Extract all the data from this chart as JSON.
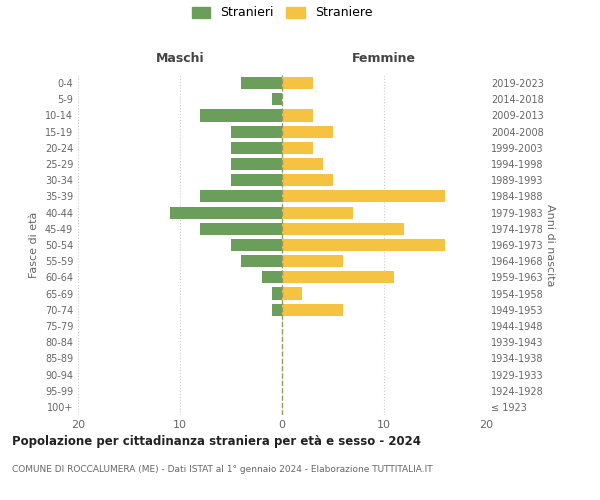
{
  "age_groups": [
    "100+",
    "95-99",
    "90-94",
    "85-89",
    "80-84",
    "75-79",
    "70-74",
    "65-69",
    "60-64",
    "55-59",
    "50-54",
    "45-49",
    "40-44",
    "35-39",
    "30-34",
    "25-29",
    "20-24",
    "15-19",
    "10-14",
    "5-9",
    "0-4"
  ],
  "birth_years": [
    "≤ 1923",
    "1924-1928",
    "1929-1933",
    "1934-1938",
    "1939-1943",
    "1944-1948",
    "1949-1953",
    "1954-1958",
    "1959-1963",
    "1964-1968",
    "1969-1973",
    "1974-1978",
    "1979-1983",
    "1984-1988",
    "1989-1993",
    "1994-1998",
    "1999-2003",
    "2004-2008",
    "2009-2013",
    "2014-2018",
    "2019-2023"
  ],
  "maschi": [
    0,
    0,
    0,
    0,
    0,
    0,
    1,
    1,
    2,
    4,
    5,
    8,
    11,
    8,
    5,
    5,
    5,
    5,
    8,
    1,
    4
  ],
  "femmine": [
    0,
    0,
    0,
    0,
    0,
    0,
    6,
    2,
    11,
    6,
    16,
    12,
    7,
    16,
    5,
    4,
    3,
    5,
    3,
    0,
    3
  ],
  "color_maschi": "#6a9e5a",
  "color_femmine": "#f5c242",
  "title": "Popolazione per cittadinanza straniera per età e sesso - 2024",
  "subtitle": "COMUNE DI ROCCALUMERA (ME) - Dati ISTAT al 1° gennaio 2024 - Elaborazione TUTTITALIA.IT",
  "xlabel_left": "Maschi",
  "xlabel_right": "Femmine",
  "ylabel": "Fasce di età",
  "ylabel_right": "Anni di nascita",
  "legend_maschi": "Stranieri",
  "legend_femmine": "Straniere",
  "xlim": 20,
  "background_color": "#ffffff",
  "grid_color": "#cccccc"
}
